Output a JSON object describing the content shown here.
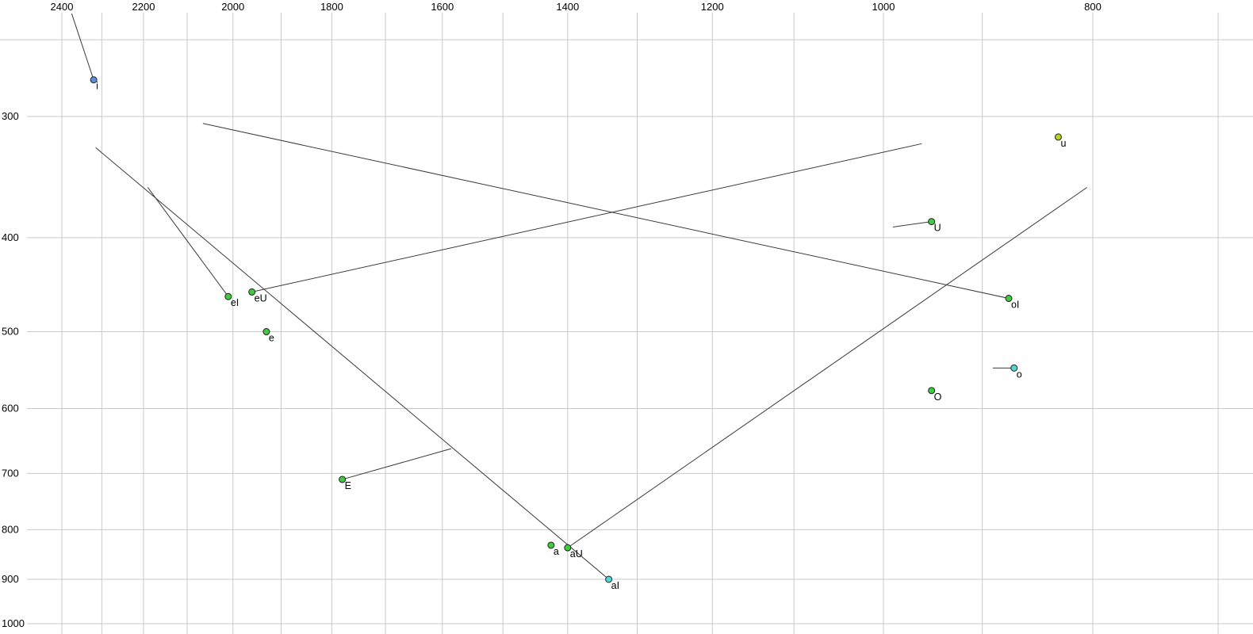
{
  "chart_data": {
    "type": "scatter",
    "title": "",
    "xlabel": "",
    "ylabel": "",
    "description": "Vowel formant plot: F2 (Hz) on reversed log x-axis across top, F1 (Hz) on log y-axis down left side. Points are vowels; lines are diphthong glide trajectories.",
    "x_axis": {
      "scale": "log",
      "reversed": true,
      "tick_labels": [
        "2400",
        "2200",
        "2000",
        "1800",
        "1600",
        "1400",
        "1200",
        "1000",
        "800"
      ],
      "tick_values": [
        2400,
        2200,
        2000,
        1800,
        1600,
        1400,
        1200,
        1000,
        800
      ],
      "gridline_values": [
        2400,
        2300,
        2200,
        2100,
        2000,
        1900,
        1800,
        1700,
        1600,
        1500,
        1400,
        1300,
        1200,
        1100,
        1000,
        900,
        800,
        700
      ],
      "range": [
        2450,
        680
      ]
    },
    "y_axis": {
      "scale": "log",
      "reversed": false,
      "tick_labels": [
        "300",
        "400",
        "500",
        "600",
        "700",
        "800",
        "900",
        "1000"
      ],
      "tick_values": [
        300,
        400,
        500,
        600,
        700,
        800,
        900,
        1000
      ],
      "gridline_values": [
        250,
        300,
        400,
        500,
        600,
        700,
        800,
        900,
        1000
      ],
      "range": [
        230,
        1010
      ]
    },
    "points": [
      {
        "label": "i",
        "f2": 2320,
        "f1": 275,
        "fill": "#5b8ddb",
        "glide_f2": 2375,
        "glide_f1": 235
      },
      {
        "label": "u",
        "f2": 830,
        "f1": 315,
        "fill": "#b4d41e",
        "glide_f2": null,
        "glide_f1": null
      },
      {
        "label": "U",
        "f2": 950,
        "f1": 385,
        "fill": "#3ecc3e",
        "glide_f2": 990,
        "glide_f1": 390
      },
      {
        "label": "eI",
        "f2": 2010,
        "f1": 460,
        "fill": "#3ecc3e",
        "glide_f2": 2190,
        "glide_f1": 355
      },
      {
        "label": "eU",
        "f2": 1960,
        "f1": 455,
        "fill": "#3ecc3e",
        "glide_f2": 960,
        "glide_f1": 320
      },
      {
        "label": "e",
        "f2": 1930,
        "f1": 500,
        "fill": "#3ecc3e",
        "glide_f2": null,
        "glide_f1": null
      },
      {
        "label": "oI",
        "f2": 875,
        "f1": 462,
        "fill": "#3ecc3e",
        "glide_f2": 2065,
        "glide_f1": 305
      },
      {
        "label": "o",
        "f2": 870,
        "f1": 545,
        "fill": "#4fd6d6",
        "glide_f2": 890,
        "glide_f1": 545
      },
      {
        "label": "O",
        "f2": 950,
        "f1": 575,
        "fill": "#3ecc3e",
        "glide_f2": null,
        "glide_f1": null
      },
      {
        "label": "E",
        "f2": 1780,
        "f1": 710,
        "fill": "#3ecc3e",
        "glide_f2": 1585,
        "glide_f1": 660
      },
      {
        "label": "a",
        "f2": 1425,
        "f1": 830,
        "fill": "#3ecc3e",
        "glide_f2": null,
        "glide_f1": null
      },
      {
        "label": "aU",
        "f2": 1400,
        "f1": 835,
        "fill": "#3ecc3e",
        "glide_f2": 805,
        "glide_f1": 355
      },
      {
        "label": "aI",
        "f2": 1340,
        "f1": 900,
        "fill": "#4fd6d6",
        "glide_f2": 2315,
        "glide_f1": 323
      }
    ],
    "colors": {
      "background": "#ffffff",
      "gridline": "#c9c9c9",
      "trajectory": "#3a3a3a",
      "point_stroke": "#222222",
      "tick_text": "#000000",
      "label_text": "#000000"
    },
    "legend": "none",
    "grid": true
  }
}
